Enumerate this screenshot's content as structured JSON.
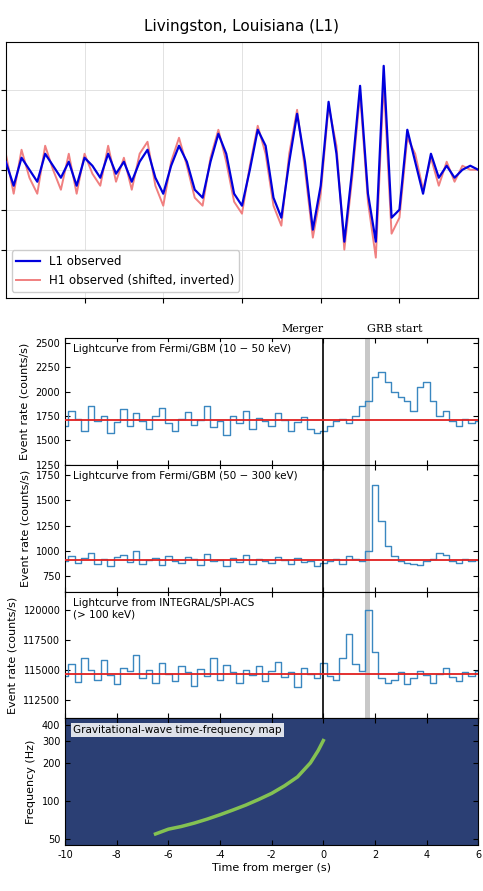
{
  "chart_data": [
    {
      "type": "line",
      "title": "Livingston, Louisiana (L1)",
      "x": [
        0,
        1,
        2,
        3,
        4,
        5,
        6,
        7,
        8,
        9,
        10,
        11,
        12,
        13,
        14,
        15,
        16,
        17,
        18,
        19,
        20,
        21,
        22,
        23,
        24,
        25,
        26,
        27,
        28,
        29,
        30,
        31,
        32,
        33,
        34,
        35,
        36,
        37,
        38,
        39,
        40,
        41,
        42,
        43,
        44,
        45,
        46,
        47,
        48,
        49,
        50,
        51,
        52,
        53,
        54,
        55,
        56,
        57,
        58,
        59,
        60
      ],
      "series": [
        {
          "name": "L1 observed",
          "color": "#0000dd",
          "values": [
            0.1,
            -0.2,
            0.15,
            0.0,
            -0.15,
            0.2,
            0.05,
            -0.1,
            0.1,
            -0.2,
            0.15,
            0.05,
            -0.1,
            0.2,
            -0.05,
            0.1,
            -0.15,
            0.1,
            0.25,
            -0.1,
            -0.3,
            0.05,
            0.3,
            0.1,
            -0.25,
            -0.35,
            0.1,
            0.45,
            0.2,
            -0.3,
            -0.45,
            0.0,
            0.5,
            0.3,
            -0.35,
            -0.6,
            0.1,
            0.7,
            0.1,
            -0.75,
            -0.2,
            0.85,
            0.2,
            -0.9,
            0.0,
            1.05,
            -0.3,
            -0.9,
            1.3,
            -0.6,
            -0.5,
            0.5,
            0.1,
            -0.3,
            0.2,
            -0.1,
            0.05,
            -0.1,
            0.0,
            0.05,
            0.0
          ]
        },
        {
          "name": "H1 observed (shifted, inverted)",
          "color": "#f08080",
          "values": [
            0.2,
            -0.3,
            0.25,
            -0.1,
            -0.3,
            0.3,
            0.0,
            -0.25,
            0.2,
            -0.3,
            0.2,
            -0.05,
            -0.2,
            0.3,
            -0.15,
            0.15,
            -0.25,
            0.2,
            0.35,
            -0.2,
            -0.45,
            0.1,
            0.4,
            0.05,
            -0.35,
            -0.45,
            0.15,
            0.5,
            0.1,
            -0.4,
            -0.55,
            0.05,
            0.55,
            0.2,
            -0.45,
            -0.7,
            0.2,
            0.75,
            0.0,
            -0.85,
            -0.3,
            0.8,
            0.3,
            -1.0,
            -0.1,
            0.95,
            -0.4,
            -1.1,
            1.1,
            -0.8,
            -0.6,
            0.4,
            0.2,
            -0.25,
            0.15,
            -0.2,
            0.1,
            -0.15,
            0.05,
            0.0,
            0.0
          ]
        }
      ],
      "xlim": [
        0,
        60
      ],
      "ylim": [
        -1.6,
        1.6
      ],
      "xticks": [
        10,
        20,
        30,
        40,
        50
      ],
      "yticks": [
        -1,
        -0.5,
        0,
        0.5,
        1
      ],
      "tick_labels": false,
      "legend": "lower left"
    },
    {
      "type": "step",
      "title": "Lightcurve from Fermi/GBM (10 − 50 keV)",
      "y_label": "Event rate (counts/s)",
      "annotations": [
        {
          "text": "Merger",
          "x": 0
        },
        {
          "text": "GRB start",
          "x": 1.7
        }
      ],
      "series": [
        {
          "color": "#3a87c0",
          "baseline": 1710,
          "values": [
            1650,
            1800,
            1720,
            1600,
            1850,
            1700,
            1750,
            1580,
            1690,
            1820,
            1650,
            1780,
            1700,
            1620,
            1750,
            1830,
            1680,
            1600,
            1720,
            1790,
            1660,
            1710,
            1850,
            1640,
            1700,
            1560,
            1750,
            1680,
            1800,
            1620,
            1730,
            1700,
            1650,
            1780,
            1710,
            1600,
            1690,
            1740,
            1620,
            1580,
            1600,
            1650,
            1700,
            1720,
            1680,
            1750,
            1850,
            1900,
            2150,
            2200,
            2100,
            2000,
            1950,
            1900,
            1800,
            2050,
            2100,
            1900,
            1750,
            1800,
            1700,
            1650,
            1720,
            1680,
            1700
          ]
        }
      ],
      "x": [
        -10,
        -9.75,
        -9.5,
        -9.25,
        -9,
        -8.75,
        -8.5,
        -8.25,
        -8,
        -7.75,
        -7.5,
        -7.25,
        -7,
        -6.75,
        -6.5,
        -6.25,
        -6,
        -5.75,
        -5.5,
        -5.25,
        -5,
        -4.75,
        -4.5,
        -4.25,
        -4,
        -3.75,
        -3.5,
        -3.25,
        -3,
        -2.75,
        -2.5,
        -2.25,
        -2,
        -1.75,
        -1.5,
        -1.25,
        -1,
        -0.75,
        -0.5,
        -0.25,
        0,
        0.25,
        0.5,
        0.75,
        1,
        1.25,
        1.5,
        1.75,
        2,
        2.25,
        2.5,
        2.75,
        3,
        3.25,
        3.5,
        3.75,
        4,
        4.25,
        4.5,
        4.75,
        5,
        5.25,
        5.5,
        5.75,
        6
      ],
      "xlim": [
        -10,
        6
      ],
      "ylim": [
        1250,
        2550
      ],
      "xticks": [
        -10,
        -8,
        -6,
        -4,
        -2,
        0,
        2,
        4,
        6
      ],
      "yticks": [
        1250,
        1500,
        1750,
        2000,
        2250,
        2500
      ],
      "tick_labels": "y"
    },
    {
      "type": "step",
      "title": "Lightcurve from Fermi/GBM (50 − 300 keV)",
      "y_label": "Event rate (counts/s)",
      "series": [
        {
          "color": "#3a87c0",
          "baseline": 910,
          "values": [
            900,
            950,
            880,
            930,
            980,
            870,
            920,
            850,
            940,
            960,
            890,
            1000,
            870,
            910,
            930,
            860,
            950,
            900,
            880,
            940,
            920,
            860,
            970,
            900,
            910,
            850,
            930,
            890,
            960,
            870,
            920,
            900,
            880,
            940,
            910,
            870,
            930,
            890,
            900,
            850,
            880,
            900,
            920,
            870,
            950,
            920,
            900,
            1000,
            1650,
            1300,
            1050,
            950,
            900,
            880,
            870,
            860,
            900,
            920,
            980,
            960,
            900,
            880,
            920,
            900,
            910
          ]
        }
      ],
      "x": [
        -10,
        -9.75,
        -9.5,
        -9.25,
        -9,
        -8.75,
        -8.5,
        -8.25,
        -8,
        -7.75,
        -7.5,
        -7.25,
        -7,
        -6.75,
        -6.5,
        -6.25,
        -6,
        -5.75,
        -5.5,
        -5.25,
        -5,
        -4.75,
        -4.5,
        -4.25,
        -4,
        -3.75,
        -3.5,
        -3.25,
        -3,
        -2.75,
        -2.5,
        -2.25,
        -2,
        -1.75,
        -1.5,
        -1.25,
        -1,
        -0.75,
        -0.5,
        -0.25,
        0,
        0.25,
        0.5,
        0.75,
        1,
        1.25,
        1.5,
        1.75,
        2,
        2.25,
        2.5,
        2.75,
        3,
        3.25,
        3.5,
        3.75,
        4,
        4.25,
        4.5,
        4.75,
        5,
        5.25,
        5.5,
        5.75,
        6
      ],
      "xlim": [
        -10,
        6
      ],
      "ylim": [
        600,
        1850
      ],
      "xticks": [
        -10,
        -8,
        -6,
        -4,
        -2,
        0,
        2,
        4,
        6
      ],
      "yticks": [
        750,
        1000,
        1250,
        1500,
        1750
      ],
      "tick_labels": "y"
    },
    {
      "type": "step",
      "title": "Lightcurve from INTEGRAL/SPI-ACS\n(> 100 keV)",
      "y_label": "Event rate (counts/s)",
      "series": [
        {
          "color": "#3a87c0",
          "baseline": 114700,
          "values": [
            114500,
            115500,
            114000,
            116000,
            115000,
            114200,
            115800,
            114600,
            113800,
            115200,
            114900,
            116200,
            114300,
            115000,
            113900,
            115600,
            114700,
            114100,
            115300,
            114800,
            113700,
            115100,
            114500,
            116000,
            114200,
            115400,
            114800,
            113900,
            115000,
            114600,
            115300,
            114100,
            114900,
            115700,
            114400,
            114800,
            113600,
            115200,
            114700,
            114300,
            115600,
            114500,
            114200,
            116000,
            118000,
            115500,
            114900,
            120000,
            116500,
            114300,
            113900,
            114200,
            114800,
            113800,
            114300,
            114900,
            114600,
            113900,
            114700,
            115200,
            114400,
            114100,
            114800,
            114500,
            114900
          ]
        }
      ],
      "x": [
        -10,
        -9.75,
        -9.5,
        -9.25,
        -9,
        -8.75,
        -8.5,
        -8.25,
        -8,
        -7.75,
        -7.5,
        -7.25,
        -7,
        -6.75,
        -6.5,
        -6.25,
        -6,
        -5.75,
        -5.5,
        -5.25,
        -5,
        -4.75,
        -4.5,
        -4.25,
        -4,
        -3.75,
        -3.5,
        -3.25,
        -3,
        -2.75,
        -2.5,
        -2.25,
        -2,
        -1.75,
        -1.5,
        -1.25,
        -1,
        -0.75,
        -0.5,
        -0.25,
        0,
        0.25,
        0.5,
        0.75,
        1,
        1.25,
        1.5,
        1.75,
        2,
        2.25,
        2.5,
        2.75,
        3,
        3.25,
        3.5,
        3.75,
        4,
        4.25,
        4.5,
        4.75,
        5,
        5.25,
        5.5,
        5.75,
        6
      ],
      "xlim": [
        -10,
        6
      ],
      "ylim": [
        111000,
        121500
      ],
      "xticks": [
        -10,
        -8,
        -6,
        -4,
        -2,
        0,
        2,
        4,
        6
      ],
      "yticks": [
        112500,
        115000,
        117500,
        120000
      ],
      "tick_labels": "y"
    },
    {
      "type": "line",
      "title": "Gravitational-wave time-frequency map",
      "y_label": "Frequency (Hz)",
      "x_label": "Time from merger (s)",
      "x": [
        -6.5,
        -6,
        -5.5,
        -5,
        -4.5,
        -4,
        -3.5,
        -3,
        -2.5,
        -2,
        -1.5,
        -1,
        -0.5,
        -0.2,
        0
      ],
      "series": [
        {
          "color": "#8fd14f",
          "values": [
            55,
            60,
            63,
            67,
            72,
            78,
            85,
            93,
            103,
            115,
            132,
            155,
            200,
            250,
            300
          ]
        }
      ],
      "log": "y",
      "xlim": [
        -10,
        6
      ],
      "ylim": [
        45,
        450
      ],
      "xticks": [
        -10,
        -8,
        -6,
        -4,
        -2,
        0,
        2,
        4,
        6
      ],
      "yticks": [
        50,
        100,
        200,
        300,
        400
      ]
    }
  ]
}
